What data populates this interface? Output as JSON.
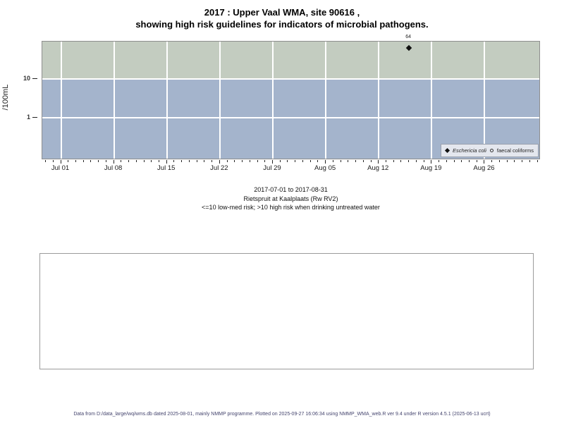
{
  "title": {
    "line1": "2017 : Upper Vaal WMA, site 90616 ,",
    "line2": "showing high risk guidelines for indicators of microbial pathogens."
  },
  "subtitle": {
    "line1": "2017-07-01 to 2017-08-31",
    "line2": "Rietspruit at Kaalplaats (Rw RV2)",
    "line3": "<=10 low-med risk; >10 high risk when drinking untreated water"
  },
  "footer": "Data from D:/data_large/wq/wms.db dated 2025-08-01, mainly NMMP programme. Plotted on 2025-09-27 16:06:34 using NMMP_WMA_web.R ver 9.4 under R version 4.5.1 (2025-06-13 ucrt)",
  "colors": {
    "zone_high_risk": "#c3ccc0",
    "zone_low_med_risk": "#a4b4cc",
    "gridline": "#ffffff",
    "panel_border": "#8e8e8e",
    "point": "#111111",
    "footer_text": "#45456e",
    "legend_bg": "#e4e7ee"
  },
  "chart_data": {
    "type": "scatter",
    "title": "2017 : Upper Vaal WMA, site 90616 , showing high risk guidelines for indicators of microbial pathogens.",
    "ylabel": "/100mL",
    "xlabel": "",
    "y_scale": "log",
    "y_ticks": [
      10,
      1
    ],
    "y_range_approx": [
      0.08,
      90
    ],
    "x_range": [
      "2017-06-28",
      "2017-09-02"
    ],
    "x_ticks": [
      {
        "label": "Jul 01",
        "date": "2017-07-01"
      },
      {
        "label": "Jul 08",
        "date": "2017-07-08"
      },
      {
        "label": "Jul 15",
        "date": "2017-07-15"
      },
      {
        "label": "Jul 22",
        "date": "2017-07-22"
      },
      {
        "label": "Jul 29",
        "date": "2017-07-29"
      },
      {
        "label": "Aug 05",
        "date": "2017-08-05"
      },
      {
        "label": "Aug 12",
        "date": "2017-08-12"
      },
      {
        "label": "Aug 19",
        "date": "2017-08-19"
      },
      {
        "label": "Aug 26",
        "date": "2017-08-26"
      }
    ],
    "minor_x_ticks": "daily",
    "grid": "white vertical lines weekly; white horizontal lines at 1 and 10",
    "risk_threshold": 10,
    "zones": [
      {
        "name": "high risk (>10)",
        "color": "#c3ccc0"
      },
      {
        "name": "low-med risk (<=10)",
        "color": "#a4b4cc"
      }
    ],
    "series": [
      {
        "name": "Eschericia coli",
        "symbol": "filled-diamond",
        "color": "#111111",
        "points": [
          {
            "date": "2017-08-16",
            "value": 64,
            "label": "64"
          }
        ]
      },
      {
        "name": "faecal coliforms",
        "symbol": "open-circle",
        "color": "#111111",
        "points": []
      }
    ],
    "legend_position": "bottom-right-inside"
  }
}
